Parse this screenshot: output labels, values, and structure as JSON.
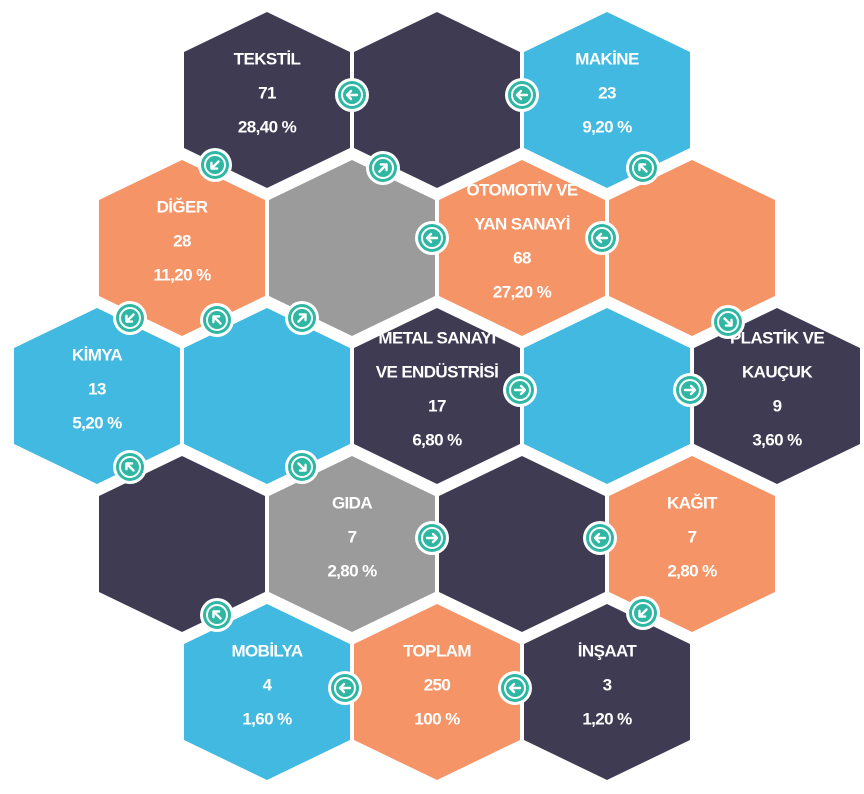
{
  "nodes": [
    {
      "label": [
        "TEKSTİL"
      ],
      "count": 71,
      "percent": "28,40 %",
      "color": "#3f3b53"
    },
    {
      "label": [
        "MAKİNE"
      ],
      "count": 23,
      "percent": "9,20 %",
      "color": "#41b9e0"
    },
    {
      "label": [
        "DİĞER"
      ],
      "count": 28,
      "percent": "11,20 %",
      "color": "#f59466"
    },
    {
      "label": [
        "OTOMOTİV VE",
        "YAN SANAYİ"
      ],
      "count": 68,
      "percent": "27,20 %",
      "color": "#f59466"
    },
    {
      "label": [
        "KİMYA"
      ],
      "count": 13,
      "percent": "5,20 %",
      "color": "#41b9e0"
    },
    {
      "label": [
        "METAL SANAYİ",
        "VE ENDÜSTRİSİ"
      ],
      "count": 17,
      "percent": "6,80 %",
      "color": "#3f3b53"
    },
    {
      "label": [
        "PLASTİK VE",
        "KAUÇUK"
      ],
      "count": 9,
      "percent": "3,60 %",
      "color": "#3f3b53"
    },
    {
      "label": [
        "GIDA"
      ],
      "count": 7,
      "percent": "2,80 %",
      "color": "#9b9b9b"
    },
    {
      "label": [
        "KAĞIT"
      ],
      "count": 7,
      "percent": "2,80 %",
      "color": "#f59466"
    },
    {
      "label": [
        "MOBİLYA"
      ],
      "count": 4,
      "percent": "1,60 %",
      "color": "#41b9e0"
    },
    {
      "label": [
        "TOPLAM"
      ],
      "count": 250,
      "percent": "100 %",
      "color": "#f59466"
    },
    {
      "label": [
        "İNŞAAT"
      ],
      "count": 3,
      "percent": "1,20 %",
      "color": "#3f3b53"
    }
  ]
}
